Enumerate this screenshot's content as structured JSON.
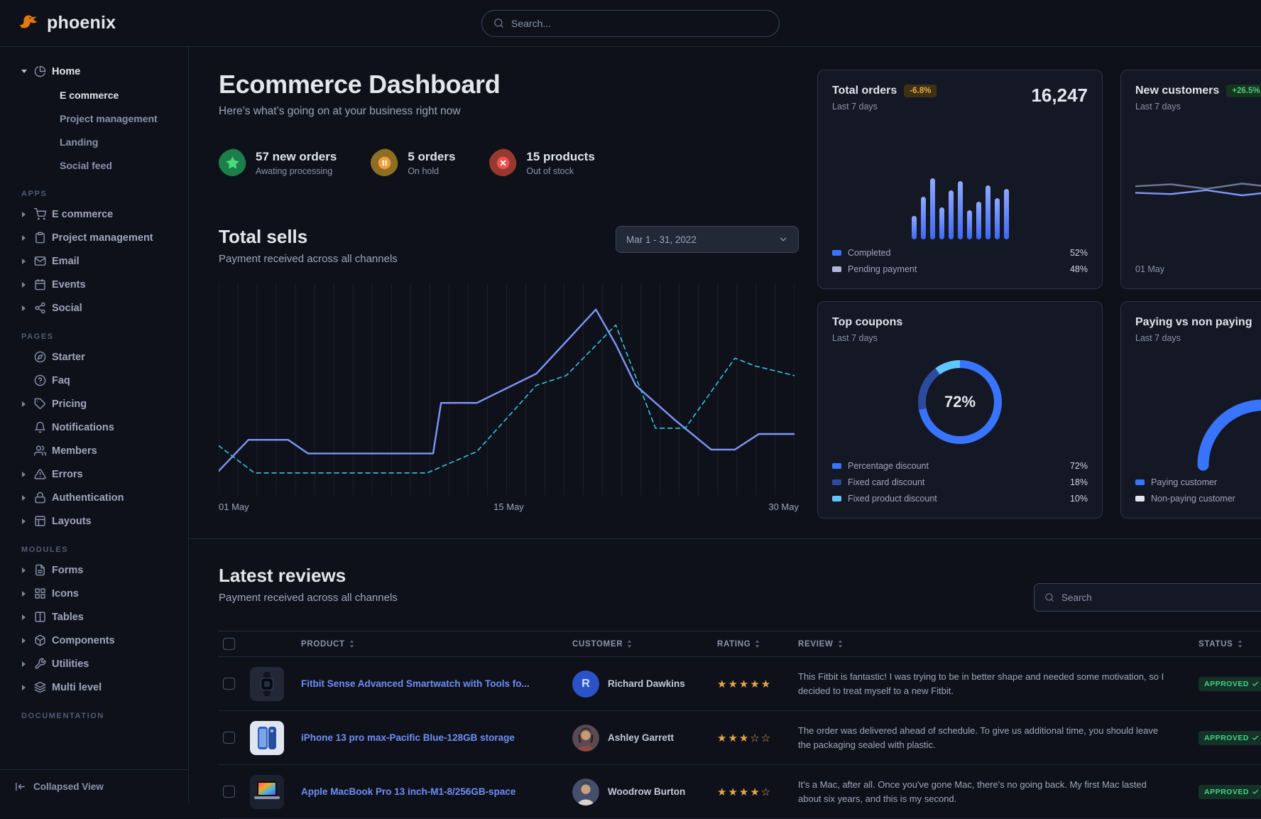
{
  "topbar": {
    "brand": "phoenix",
    "search_placeholder": "Search..."
  },
  "sidebar": {
    "tree": {
      "label": "Home",
      "icon": "pie-chart",
      "expanded": true,
      "children": [
        {
          "label": "E commerce",
          "active": true
        },
        {
          "label": "Project management"
        },
        {
          "label": "Landing"
        },
        {
          "label": "Social feed"
        }
      ]
    },
    "sections": [
      {
        "title": "APPS",
        "items": [
          {
            "label": "E commerce",
            "icon": "cart",
            "caret": true
          },
          {
            "label": "Project management",
            "icon": "clipboard",
            "caret": true
          },
          {
            "label": "Email",
            "icon": "mail",
            "caret": true
          },
          {
            "label": "Events",
            "icon": "calendar",
            "caret": true
          },
          {
            "label": "Social",
            "icon": "share",
            "caret": true
          }
        ]
      },
      {
        "title": "PAGES",
        "items": [
          {
            "label": "Starter",
            "icon": "compass",
            "caret": false
          },
          {
            "label": "Faq",
            "icon": "help",
            "caret": false
          },
          {
            "label": "Pricing",
            "icon": "tag",
            "caret": true
          },
          {
            "label": "Notifications",
            "icon": "bell",
            "caret": false
          },
          {
            "label": "Members",
            "icon": "users",
            "caret": false
          },
          {
            "label": "Errors",
            "icon": "alert",
            "caret": true
          },
          {
            "label": "Authentication",
            "icon": "lock",
            "caret": true
          },
          {
            "label": "Layouts",
            "icon": "layout",
            "caret": true
          }
        ]
      },
      {
        "title": "MODULES",
        "items": [
          {
            "label": "Forms",
            "icon": "file",
            "caret": true
          },
          {
            "label": "Icons",
            "icon": "grid",
            "caret": true
          },
          {
            "label": "Tables",
            "icon": "columns",
            "caret": true
          },
          {
            "label": "Components",
            "icon": "package",
            "caret": true
          },
          {
            "label": "Utilities",
            "icon": "tool",
            "caret": true
          },
          {
            "label": "Multi level",
            "icon": "layers",
            "caret": true
          }
        ]
      },
      {
        "title": "DOCUMENTATION",
        "items": []
      }
    ],
    "collapse_label": "Collapsed View"
  },
  "header": {
    "title": "Ecommerce Dashboard",
    "subtitle": "Here’s what’s going on at your business right now"
  },
  "stats": [
    {
      "value": "57 new orders",
      "caption": "Awating processing",
      "tone": "success",
      "icon": "star"
    },
    {
      "value": "5 orders",
      "caption": "On hold",
      "tone": "warning",
      "icon": "pause"
    },
    {
      "value": "15 products",
      "caption": "Out of stock",
      "tone": "danger",
      "icon": "x"
    }
  ],
  "total_sells": {
    "title": "Total sells",
    "subtitle": "Payment received across all channels",
    "date_range": "Mar 1 - 31, 2022"
  },
  "cards": {
    "total_orders": {
      "title": "Total orders",
      "badge": "-6.8%",
      "period": "Last 7 days",
      "value": "16,247",
      "legend": [
        {
          "label": "Completed",
          "value": "52%",
          "color": "#3874ff"
        },
        {
          "label": "Pending payment",
          "value": "48%",
          "color": "#aeb9da"
        }
      ]
    },
    "new_customers": {
      "title": "New customers",
      "badge": "+26.5%",
      "period": "Last 7 days",
      "x_label": "01 May"
    },
    "top_coupons": {
      "title": "Top coupons",
      "period": "Last 7 days"
    },
    "paying": {
      "title": "Paying vs non paying",
      "period": "Last 7 days",
      "legend": [
        {
          "label": "Paying customer",
          "color": "#3874ff"
        },
        {
          "label": "Non-paying customer",
          "color": "#e3e6ed"
        }
      ]
    }
  },
  "reviews": {
    "title": "Latest reviews",
    "subtitle": "Payment received across all channels",
    "search_placeholder": "Search",
    "columns": [
      "PRODUCT",
      "CUSTOMER",
      "RATING",
      "REVIEW",
      "STATUS"
    ],
    "rows": [
      {
        "product": "Fitbit Sense Advanced Smartwatch with Tools fo...",
        "thumb": "fitbit",
        "customer": "Richard Dawkins",
        "avatar": {
          "type": "initial",
          "letter": "R"
        },
        "rating": 5,
        "review": "This Fitbit is fantastic! I was trying to be in better shape and needed some motivation, so I decided to treat myself to a new Fitbit.",
        "status": "APPROVED"
      },
      {
        "product": "iPhone 13 pro max-Pacific Blue-128GB storage",
        "thumb": "iphone",
        "customer": "Ashley Garrett",
        "avatar": {
          "type": "photo-female"
        },
        "rating": 3,
        "review": "The order was delivered ahead of schedule. To give us additional time, you should leave the packaging sealed with plastic.",
        "status": "APPROVED"
      },
      {
        "product": "Apple MacBook Pro 13 inch-M1-8/256GB-space",
        "thumb": "macbook",
        "customer": "Woodrow Burton",
        "avatar": {
          "type": "photo-male"
        },
        "rating": 4,
        "review": "It's a Mac, after all. Once you've gone Mac, there's no going back. My first Mac lasted about six years, and this is my second.",
        "status": "APPROVED"
      }
    ]
  },
  "chart_data": [
    {
      "id": "total_sells",
      "type": "line",
      "title": "Total sells",
      "x_ticks": [
        "01 May",
        "15 May",
        "30 May"
      ],
      "x_range": [
        1,
        30
      ],
      "y_range": [
        0,
        100
      ],
      "grid": "vertical-daily",
      "series": [
        {
          "name": "Sells",
          "style": "solid",
          "color": "#7e96f7",
          "points": [
            [
              1,
              8
            ],
            [
              2.5,
              24
            ],
            [
              4.5,
              24
            ],
            [
              5.5,
              17
            ],
            [
              11.8,
              17
            ],
            [
              12.2,
              43
            ],
            [
              14,
              43
            ],
            [
              17,
              58
            ],
            [
              20,
              91
            ],
            [
              21,
              73
            ],
            [
              22,
              52
            ],
            [
              24,
              34
            ],
            [
              25.8,
              19
            ],
            [
              27,
              19
            ],
            [
              28.2,
              27
            ],
            [
              30,
              27
            ]
          ]
        },
        {
          "name": "Comparison",
          "style": "dashed",
          "color": "#35c4dc",
          "points": [
            [
              1,
              21
            ],
            [
              2.8,
              7
            ],
            [
              11.5,
              7
            ],
            [
              14,
              18
            ],
            [
              17,
              52
            ],
            [
              18.5,
              57
            ],
            [
              21,
              83
            ],
            [
              23,
              30
            ],
            [
              24.5,
              30
            ],
            [
              27,
              66
            ],
            [
              28,
              62
            ],
            [
              30,
              57
            ]
          ]
        }
      ]
    },
    {
      "id": "total_orders",
      "type": "bar",
      "values": [
        38,
        70,
        100,
        52,
        80,
        95,
        48,
        62,
        88,
        68,
        83
      ],
      "y_range": [
        0,
        100
      ],
      "legend": [
        {
          "label": "Completed",
          "value": 52
        },
        {
          "label": "Pending payment",
          "value": 48
        }
      ]
    },
    {
      "id": "new_customers",
      "type": "line",
      "x_label": "01 May",
      "y_range": [
        0,
        100
      ],
      "series": [
        {
          "name": "Previous",
          "style": "solid",
          "color": "#6e7891",
          "points": [
            [
              0,
              52
            ],
            [
              14,
              55
            ],
            [
              28,
              48
            ],
            [
              42,
              56
            ],
            [
              56,
              50
            ],
            [
              70,
              58
            ],
            [
              84,
              52
            ],
            [
              100,
              56
            ]
          ]
        },
        {
          "name": "New customers",
          "style": "solid",
          "color": "#7e96f7",
          "points": [
            [
              0,
              42
            ],
            [
              14,
              40
            ],
            [
              28,
              46
            ],
            [
              42,
              38
            ],
            [
              56,
              44
            ],
            [
              66,
              68
            ],
            [
              78,
              46
            ],
            [
              90,
              58
            ],
            [
              100,
              66
            ]
          ]
        }
      ]
    },
    {
      "id": "top_coupons",
      "type": "donut",
      "center_label": "72%",
      "segments": [
        {
          "label": "Percentage discount",
          "value": 72,
          "color": "#3874ff"
        },
        {
          "label": "Fixed card discount",
          "value": 18,
          "color": "#2e4a9e"
        },
        {
          "label": "Fixed product discount",
          "value": 10,
          "color": "#60c6ff"
        }
      ]
    },
    {
      "id": "paying_vs_non_paying",
      "type": "gauge",
      "value": 75,
      "max": 100,
      "colors": {
        "progress": "#3874ff",
        "track": "#39435f"
      }
    }
  ]
}
